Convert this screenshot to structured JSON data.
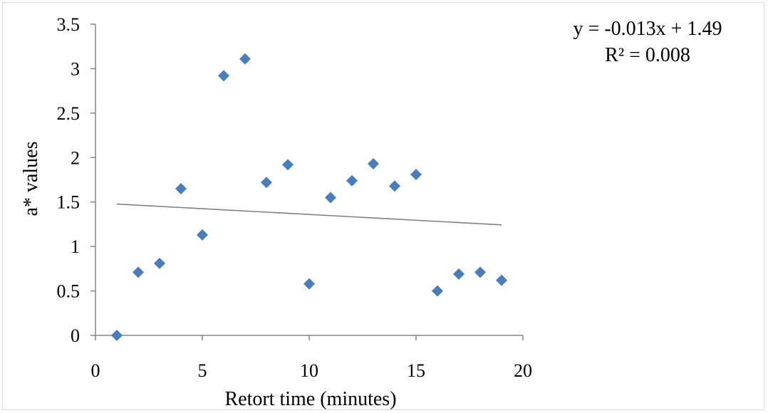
{
  "chart_data": {
    "type": "scatter",
    "xlabel": "Retort time (minutes)",
    "ylabel": "a* values",
    "xlim": [
      0,
      20
    ],
    "ylim": [
      0,
      3.5
    ],
    "x_ticks": [
      "0",
      "5",
      "10",
      "15",
      "20"
    ],
    "y_ticks": [
      "0",
      "0.5",
      "1",
      "1.5",
      "2",
      "2.5",
      "3",
      "3.5"
    ],
    "grid": false,
    "legend": "none",
    "marker": "diamond",
    "marker_color": "#4A7EBB",
    "trendline_color": "#808080",
    "series": [
      {
        "points": [
          {
            "x": 1,
            "y": 0.0
          },
          {
            "x": 2,
            "y": 0.71
          },
          {
            "x": 3,
            "y": 0.81
          },
          {
            "x": 4,
            "y": 1.65
          },
          {
            "x": 5,
            "y": 1.13
          },
          {
            "x": 6,
            "y": 2.92
          },
          {
            "x": 7,
            "y": 3.11
          },
          {
            "x": 8,
            "y": 1.72
          },
          {
            "x": 9,
            "y": 1.92
          },
          {
            "x": 10,
            "y": 0.58
          },
          {
            "x": 11,
            "y": 1.55
          },
          {
            "x": 12,
            "y": 1.74
          },
          {
            "x": 13,
            "y": 1.93
          },
          {
            "x": 14,
            "y": 1.68
          },
          {
            "x": 15,
            "y": 1.81
          },
          {
            "x": 16,
            "y": 0.5
          },
          {
            "x": 17,
            "y": 0.69
          },
          {
            "x": 18,
            "y": 0.71
          },
          {
            "x": 19,
            "y": 0.62
          }
        ]
      }
    ],
    "trendline": {
      "slope": -0.013,
      "intercept": 1.49,
      "x_start": 1,
      "x_end": 19,
      "equation_line1": "y = -0.013x + 1.49",
      "equation_line2": "R² = 0.008"
    }
  }
}
